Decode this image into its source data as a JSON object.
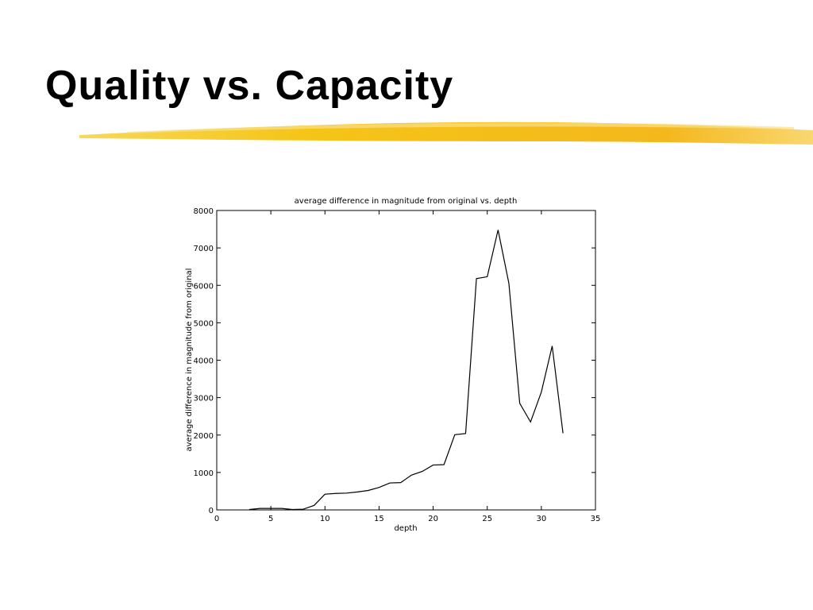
{
  "slide": {
    "title": "Quality vs. Capacity"
  },
  "chart_data": {
    "type": "line",
    "title": "average difference in magnitude from original vs. depth",
    "x_label": "depth",
    "y_label": "average difference in magnitude from original",
    "x": [
      3,
      4,
      5,
      6,
      7,
      8,
      9,
      10,
      11,
      12,
      13,
      14,
      15,
      16,
      17,
      18,
      19,
      20,
      21,
      22,
      23,
      24,
      25,
      26,
      27,
      28,
      29,
      30,
      31,
      32
    ],
    "series": [
      {
        "color": "#000000",
        "values": [
          10,
          40,
          40,
          40,
          10,
          20,
          120,
          420,
          440,
          450,
          480,
          520,
          600,
          720,
          730,
          930,
          1030,
          1200,
          1210,
          2010,
          2040,
          6180,
          6230,
          7480,
          6050,
          2850,
          2350,
          3150,
          4380,
          2050
        ]
      }
    ],
    "xlim": [
      0,
      35
    ],
    "xticks": [
      0,
      5,
      10,
      15,
      20,
      25,
      30,
      35
    ],
    "ylim": [
      0,
      8000
    ],
    "yticks": [
      0,
      1000,
      2000,
      3000,
      4000,
      5000,
      6000,
      7000,
      8000
    ],
    "grid": false
  }
}
